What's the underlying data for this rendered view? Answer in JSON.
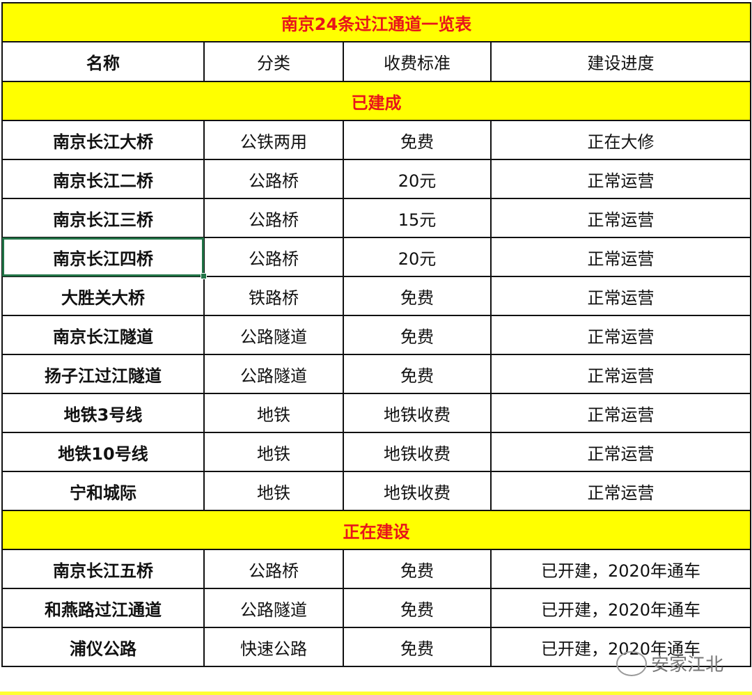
{
  "title": "南京24条过江通道一览表",
  "headers": [
    "名称",
    "分类",
    "收费标准",
    "建设进度"
  ],
  "sections": [
    {
      "label": "已建成",
      "rows": [
        [
          "南京长江大桥",
          "公铁两用",
          "免费",
          "正在大修"
        ],
        [
          "南京长江二桥",
          "公路桥",
          "20元",
          "正常运营"
        ],
        [
          "南京长江三桥",
          "公路桥",
          "15元",
          "正常运营"
        ],
        [
          "南京长江四桥",
          "公路桥",
          "20元",
          "正常运营"
        ],
        [
          "大胜关大桥",
          "铁路桥",
          "免费",
          "正常运营"
        ],
        [
          "南京长江隧道",
          "公路隧道",
          "免费",
          "正常运营"
        ],
        [
          "扬子江过江隧道",
          "公路隧道",
          "免费",
          "正常运营"
        ],
        [
          "地铁3号线",
          "地铁",
          "地铁收费",
          "正常运营"
        ],
        [
          "地铁10号线",
          "地铁",
          "地铁收费",
          "正常运营"
        ],
        [
          "宁和城际",
          "地铁",
          "地铁收费",
          "正常运营"
        ]
      ]
    },
    {
      "label": "正在建设",
      "rows": [
        [
          "南京长江五桥",
          "公路桥",
          "免费",
          "已开建，2020年通车"
        ],
        [
          "和燕路过江通道",
          "公路隧道",
          "免费",
          "已开建，2020年通车"
        ],
        [
          "浦仪公路",
          "快速公路",
          "免费",
          "已开建，2020年通车"
        ]
      ]
    }
  ],
  "selected_cell": "南京长江四桥",
  "watermark": "安家江北",
  "colors": {
    "section_bg": "#ffff00",
    "section_text": "#e8141b",
    "selection": "#217346"
  }
}
